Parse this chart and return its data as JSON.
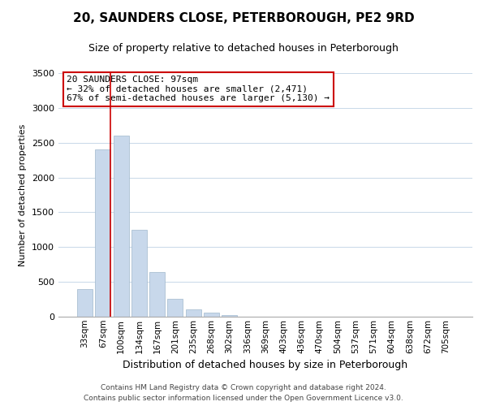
{
  "title": "20, SAUNDERS CLOSE, PETERBOROUGH, PE2 9RD",
  "subtitle": "Size of property relative to detached houses in Peterborough",
  "xlabel": "Distribution of detached houses by size in Peterborough",
  "ylabel": "Number of detached properties",
  "categories": [
    "33sqm",
    "67sqm",
    "100sqm",
    "134sqm",
    "167sqm",
    "201sqm",
    "235sqm",
    "268sqm",
    "302sqm",
    "336sqm",
    "369sqm",
    "403sqm",
    "436sqm",
    "470sqm",
    "504sqm",
    "537sqm",
    "571sqm",
    "604sqm",
    "638sqm",
    "672sqm",
    "705sqm"
  ],
  "bar_values": [
    400,
    2400,
    2600,
    1250,
    640,
    260,
    110,
    55,
    25,
    5,
    2,
    2,
    0,
    0,
    0,
    0,
    0,
    0,
    0,
    0,
    0
  ],
  "bar_color": "#c8d8eb",
  "bar_edge_color": "#a0b8cc",
  "marker_line_color": "#cc0000",
  "marker_after_index": 1,
  "ylim": [
    0,
    3500
  ],
  "yticks": [
    0,
    500,
    1000,
    1500,
    2000,
    2500,
    3000,
    3500
  ],
  "annotation_title": "20 SAUNDERS CLOSE: 97sqm",
  "annotation_line1": "← 32% of detached houses are smaller (2,471)",
  "annotation_line2": "67% of semi-detached houses are larger (5,130) →",
  "footer_line1": "Contains HM Land Registry data © Crown copyright and database right 2024.",
  "footer_line2": "Contains public sector information licensed under the Open Government Licence v3.0.",
  "background_color": "#ffffff",
  "grid_color": "#c8d8e8",
  "annotation_box_edge": "#cc0000",
  "title_fontsize": 11,
  "subtitle_fontsize": 9,
  "footer_fontsize": 6.5,
  "ylabel_fontsize": 8,
  "xlabel_fontsize": 9,
  "tick_fontsize": 7.5,
  "ytick_fontsize": 8,
  "ann_fontsize": 8
}
